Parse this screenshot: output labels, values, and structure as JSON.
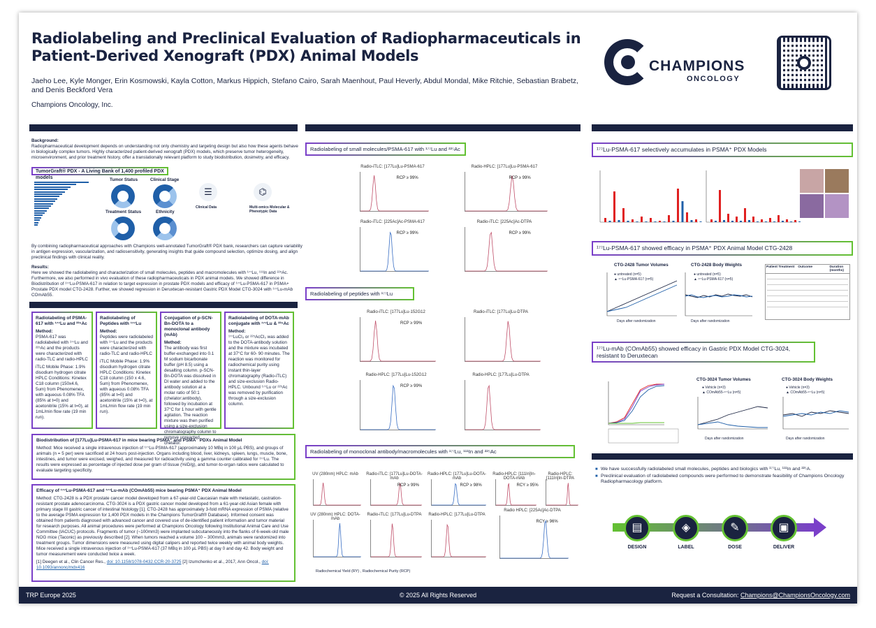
{
  "header": {
    "title": "Radiolabeling and Preclinical Evaluation of Radiopharmaceuticals in Patient-Derived Xenograft (PDX) Animal Models",
    "authors": "Jaeho Lee, Kyle Monger, Erin Kosmowski, Kayla Cotton,  Markus Hippich, Stefano Cairo, Sarah Maenhout, Paul Heverly, Abdul Mondal, Mike Ritchie, Sebastian Brabetz, and Denis Beckford Vera",
    "affiliation": "Champions Oncology, Inc.",
    "logo_name": "CHAMPIONS",
    "logo_sub": "ONCOLOGY"
  },
  "left": {
    "background_heading": "Background:",
    "background_text": "Radiopharmaceutical development depends on understanding not only chemistry and targeting design but also how these agents behave in biologically complex tumors. Highly characterized patient-derived xenograft (PDX) models, which preserve tumor heterogeneity, microenvironment, and prior treatment history, offer a translationally relevant platform to study biodistribution, dosimetry, and efficacy.",
    "tumorgraft_label": "TumorGraft® PDX - A Living Bank of 1,400 profiled PDX models",
    "tg_labels": [
      "Tumor Status",
      "Clinical Stage",
      "Treatment Status",
      "Ethnicity",
      "Clinical Data",
      "Multi-omics Molecular & Phenotypic Data"
    ],
    "combining_text": "By combining radiopharmaceutical approaches with Champions well-annotated TumorGraft® PDX bank, researchers can capture variability in antigen expression, vascularization, and radiosensitivity, generating insights that guide compound selection, optimize dosing, and align preclinical findings with clinical reality.",
    "results_heading": "Results:",
    "results_text": "Here we showed the radiolabeling and characterization of small molecules, peptides and macromolecules with ¹⁷⁷Lu, ¹¹¹In and ²²⁵Ac. Furthermore, we also performed in vivo evaluation of these radiopharmaceuticals in PDX animal models. We showed difference in Biodistribution of ¹⁷⁷Lu-PSMA-617 in relation to target expression in prostate PDX models and efficacy of ¹⁷⁷Lu-PSMA-617 in PSMA+ Prostate PDX model CTG-2428. Further, we showed regression in Deruxtecan-resistant Gastric PDX Model CTG-3024 with ¹⁷⁷Lu-mAb COmAb55.",
    "boxes": [
      {
        "title": "Radiolabeling of PSMA-617 with ¹⁷⁷Lu and ²²⁵Ac",
        "method": "Method:",
        "text": "PSMA-617 was radiolabeled with ¹⁷⁷Lu and ²²⁵Ac and the products were characterized with radio-TLC and radio-HPLC",
        "extra": "iTLC Mobile Phase: 1.9% disodium hydrogen citrate HPLC Conditions: Kinetex C18 column (150x4.6, 5um) from Phenomenex, with aqueous 0.08% TFA (85% at t=0) and acetonitrile (15% at t=0), at 1mL/min flow rate (19 min run)."
      },
      {
        "title": "Radiolabeling of Peptides with ¹⁷⁷Lu",
        "method": "Method:",
        "text": "Peptides were radiolabeled with ¹⁷⁷Lu and the products were characterized with radio-TLC and radio-HPLC",
        "extra": "iTLC Mobile Phase: 1.9% disodium hydrogen citrate HPLC Conditions: Kinetex C18 column (150 x 4.6, 5um) from Phenomenex, with aqueous 0.08% TFA (85% at t=0) and acetonitrile (15% at t=0), at 1mL/min flow rate (19 min run)."
      },
      {
        "title": "Conjugation of p-SCN-Bn-DOTA to a monoclonal antibody (mAb)",
        "method": "Method:",
        "text": "The antibody was first buffer-exchanged into 0.1 M sodium bicarbonate buffer (pH 8.5) using a desalting column. p-SCN-Bn-DOTA was dissolved in DI water and added to the antibody solution at a molar ratio of 50:1 (chelator:antibody), followed by incubation at 37°C for 1 hour with gentle agitation. The reaction mixture was then purified using a size-exclusion chromatography column to remove unreacted chelator.",
        "extra": ""
      },
      {
        "title": "Radiolabeling of DOTA-mAb conjugate with ¹⁷⁷Lu & ²²⁵Ac",
        "method": "Method:",
        "text": "¹⁷⁷LuCl₃ or ²²⁵AcCl₃ was added to the DOTA-antibody solution and the mixture was incubated at 37°C for 60- 90 minutes. The reaction was monitored for radiochemical purity using instant thin-layer chromatography (Radio-iTLC) and size-exclusion Radio-HPLC. Unbound ¹⁷⁷Lu or ²²⁵Ac was removed by purification through a size-exclusion column.",
        "extra": ""
      }
    ],
    "biodist_title": "Biodistribution of [177Lu]Lu-PSMA-617 in mice bearing PSMA⁺ and PSMA⁻ PDXs Animal Model",
    "biodist_text": "Method: Mice received a single intravenous injection of ¹⁷⁷Lu-PSMA-617 (approximately 10 MBq in 100 µL PBS), and groups of animals (n = 5 per) were sacrificed at 24 hours post-injection. Organs including blood, liver, kidneys, spleen, lungs, muscle, bone, intestines, and tumor were excised, weighed, and measured for radioactivity using a gamma counter calibrated for ¹⁷⁷Lu. The results were expressed as percentage of injected dose per gram of tissue (%ID/g), and tumor-to-organ ratios were calculated to evaluate targeting specificity.",
    "efficacy_title": "Efficacy of ¹⁷⁷Lu-PSMA-617 and ¹⁷⁷Lu-mAb (COmAb55) mice bearing PSMA⁺ PDX Animal Model",
    "efficacy_text": "Method: CTG-2428 is a PDX prostate cancer model developed from a 67-year-old Caucasian male with metastatic, castration-resistant prostate adenocarcinoma. CTG-3024 is a PDX gastric cancer model developed from a 61-year-old Asian female with primary stage III gastric cancer of intestinal histology [1]. CTG-2428 has approximately 3-fold mRNA expression of PSMA (relative to the average PSMA expression for 1,400 PDX models in the Champions TumorGraft® Database). Informed consent was obtained from patients diagnosed with advanced cancer and covered use of de-identified patient information and tumor material for research purposes. All animal procedures were performed at Champions Oncology following Institutional Animal Care and Use Committee (IACUC) protocols. Fragments of tumor (~100mm3) were implanted subcutaneously into the flanks of 6-week-old male NOG mice (Taconic) as previously described [2]. When tumors reached a volume 100 – 300mm3, animals were randomized into treatment groups. Tumor dimensions were measured using digital calipers and reported twice weekly with animal body weights. Mice received a single intravenous injection of ¹⁷⁷Lu-PSMA-617 (37 MBq in 100 µL PBS) at day 0 and day 42. Body weight and tumor measurement were conducted twice a week.",
    "ref1": "[1] Deegen et al., Clin Cancer Res., ",
    "ref1_link": "doi: 10.1158/1078-0432.CCR-20-3725",
    "ref2": "  [2] Izumchenko et al., 2017, Ann Oncol., ",
    "ref2_link": "doi: 10.1093/annonc/mdx416"
  },
  "middle": {
    "sec1": "Radiolabeling of small molecules/PSMA-617 with ¹⁷⁷Lu and ²²⁵Ac",
    "sec1_plots": [
      {
        "title": "Radio-iTLC: [177Lu]Lu-PSMA-617",
        "rcp": "RCP ≥ 99%"
      },
      {
        "title": "Radio-HPLC: [177Lu]Lu-PSMA-617",
        "rcp": "RCP ≥ 99%"
      },
      {
        "title": "Radio-iTLC: [225Ac]Ac-PSMA-617",
        "rcp": "RCP ≥ 99%"
      },
      {
        "title": "Radio-iTLC: [225Ac]Ac-DTPA",
        "rcp": "RCP ≥ 99%"
      }
    ],
    "sec2": "Radiolabeling of peptides with ¹⁷⁷Lu",
    "sec2_plots": [
      {
        "title": "Radio-iTLC: [177Lu]Lu-152G12",
        "rcp": "RCP ≥ 99%"
      },
      {
        "title": "Radio-iTLC: [177Lu]Lu-DTPA",
        "rcp": ""
      },
      {
        "title": "Radio-HPLC: [177Lu]Lu-152G12",
        "rcp": "RCP ≥ 99%"
      },
      {
        "title": "Radio-HPLC: [177Lu]Lu-DTPA",
        "rcp": ""
      }
    ],
    "sec3": "Radiolabeling of monoclonal antibody/macromolecules with ¹⁷⁷Lu, ¹¹¹In and ²²⁵Ac",
    "sec3_plots": [
      {
        "title": "UV (280nm) HPLC: mAb",
        "rcp": ""
      },
      {
        "title": "Radio-iTLC: [177Lu]Lu-DOTA-mAb",
        "rcp": "RCP ≥ 99%"
      },
      {
        "title": "Radio-HPLC: [177Lu]Lu-DOTA-mAb",
        "rcp": "RCP ≥ 98%"
      },
      {
        "title": "Radio-HPLC: [111In]In-DOTA-mAb",
        "rcp": "RCY ≥ 95%"
      },
      {
        "title": "Radio-HPLC: [111In]In-DTPA",
        "rcp": ""
      },
      {
        "title": "UV (280nm) HPLC: DOTA-mAb",
        "rcp": ""
      },
      {
        "title": "Radio-iTLC: [177Lu]Lu-DTPA",
        "rcp": ""
      },
      {
        "title": "Radio-HPLC: [177Lu]Lu-DTPA",
        "rcp": ""
      },
      {
        "title": "Radio HPLC: [225Ac]Ac-DTPA",
        "rcp": "RCY ≥ 96%"
      }
    ],
    "sec3_note": "Radiochemical Yield (RY) , Radiochemical Purity (RCP)"
  },
  "right": {
    "r1": "¹⁷⁷Lu-PSMA-617 selectively accumulates in PSMA⁺ PDX Models",
    "r2": "¹⁷⁷Lu-PSMA-617 showed efficacy in PSMA⁺ PDX Animal Model CTG-2428",
    "r2_charts": [
      {
        "title": "CTG-2428 Tumor Volumes",
        "xlabel": "Days after randomization",
        "legend": [
          "untreated (n=5)",
          "¹⁷⁷Lu-PSMA-617 (n=5)"
        ]
      },
      {
        "title": "CTG-2428 Body Weights",
        "xlabel": "Days after randomization",
        "legend": [
          "untreated (n=5)",
          "¹⁷⁷Lu-PSMA-617 (n=5)"
        ]
      }
    ],
    "r2_table_headers": [
      "Patient Treatment",
      "Outcome",
      "Duration (months)"
    ],
    "r3": "¹⁷⁷Lu-mAb (COmAb55) showed efficacy in Gastric PDX Model CTG-3024, resistant to Deruxtecan",
    "r3_charts": [
      {
        "title": "CTG-3024 Tumor Volumes",
        "xlabel": "Days after randomization",
        "legend": [
          "Vehicle (n=3)",
          "COmAb55-¹⁷⁷Lu (n=5)"
        ]
      },
      {
        "title": "CTG-3024 Body Weights",
        "xlabel": "Days after randomization",
        "legend": [
          "Vehicle (n=3)",
          "COmAb55-¹⁷⁷Lu (n=5)"
        ]
      }
    ],
    "conclusions": [
      "We have successfully radiolabeled small molecules, peptides and biologics with ¹⁷⁷Lu, ¹¹¹In and ²²⁵A.",
      "Preclinical evaluation of radiolabeled compounds were performed to demonstrate feasibility of Champions Oncology Radiopharmacology platform."
    ],
    "pipeline": [
      "DESIGN",
      "LABEL",
      "DOSE",
      "DELIVER"
    ]
  },
  "footer": {
    "left": "TRP Europe 2025",
    "center": "© 2025 All Rights Reserved",
    "right_prefix": "Request a Consultation: ",
    "right_link": "Champions@ChampionsOncology.com"
  },
  "colors": {
    "navy": "#1a2340",
    "purple": "#7a3fc9",
    "green": "#63c132",
    "blue": "#1f5fa8",
    "red": "#e02020"
  }
}
